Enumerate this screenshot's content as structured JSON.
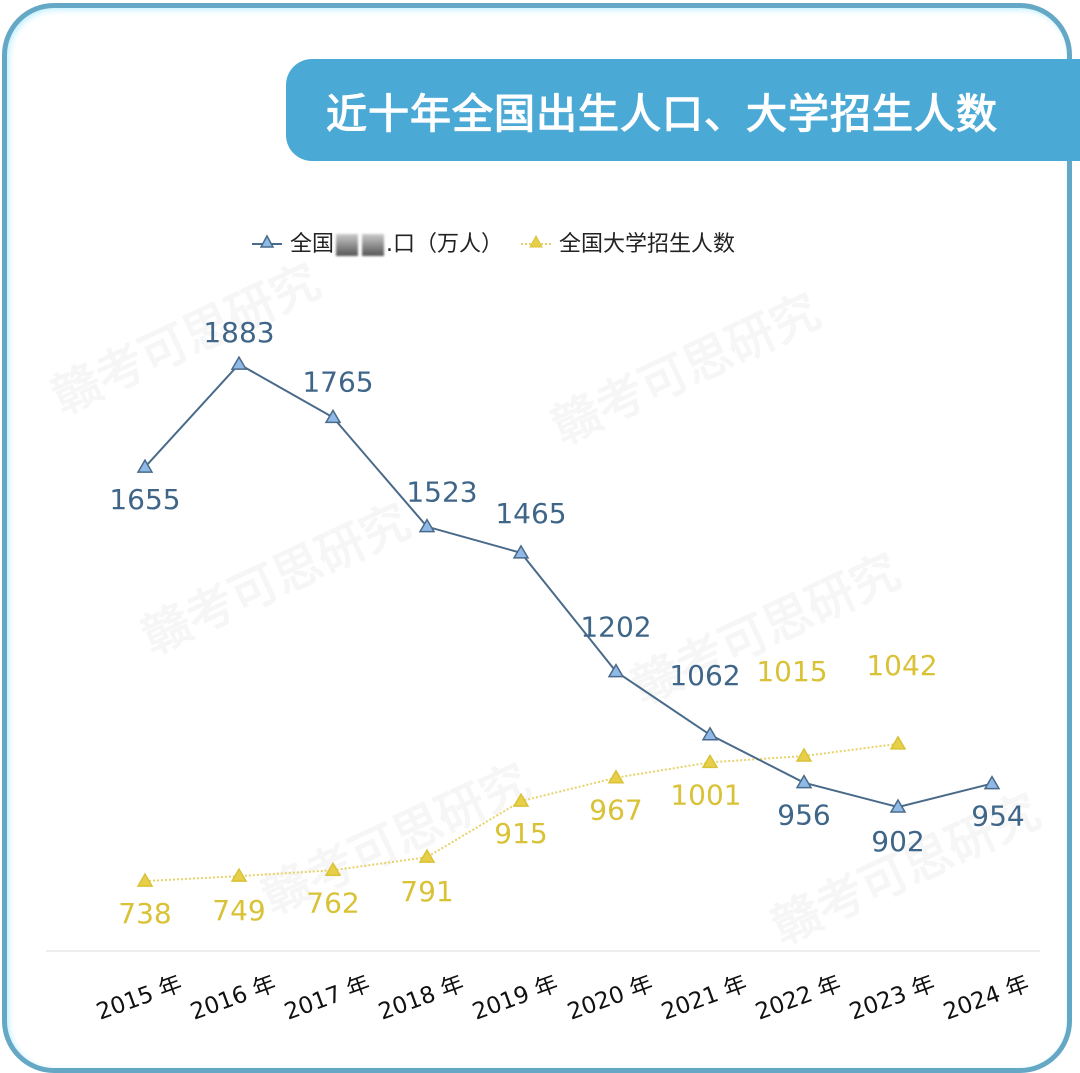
{
  "title": "近十年全国出生人口、大学招生人数",
  "legend": {
    "series1_label_prefix": "全国",
    "series1_label_suffix": ".口（万人）",
    "series2_label": "全国大学招生人数"
  },
  "colors": {
    "frame": "#64a8c6",
    "banner": "#4ba9d6",
    "births_line": "#4a6a8a",
    "births_marker": "#8fb9e6",
    "births_label": "#3f6688",
    "enroll_line": "#e6d36a",
    "enroll_marker": "#e8cf4a",
    "enroll_label": "#d9c236"
  },
  "watermark": "赣考可思研究",
  "chart_data": {
    "type": "line",
    "title": "近十年全国出生人口、大学招生人数",
    "categories": [
      "2015 年",
      "2016 年",
      "2017 年",
      "2018 年",
      "2019 年",
      "2020 年",
      "2021 年",
      "2022 年",
      "2023 年",
      "2024 年"
    ],
    "series": [
      {
        "name": "全国出生人口（万人）",
        "values": [
          1655,
          1883,
          1765,
          1523,
          1465,
          1202,
          1062,
          956,
          902,
          954
        ],
        "style": "solid",
        "marker": "triangle"
      },
      {
        "name": "全国大学招生人数",
        "values": [
          738,
          749,
          762,
          791,
          915,
          967,
          1001,
          1015,
          1042,
          null
        ],
        "style": "dotted",
        "marker": "triangle"
      }
    ],
    "xlabel": "",
    "ylabel": "",
    "grid": false,
    "legend_position": "top"
  }
}
